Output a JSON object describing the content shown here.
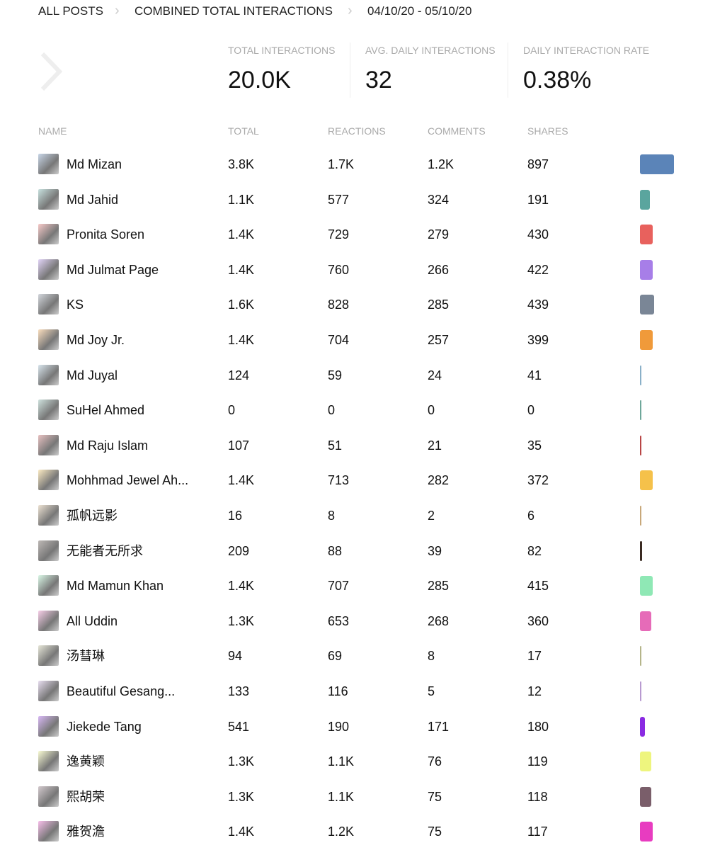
{
  "breadcrumb": [
    "ALL POSTS",
    "COMBINED TOTAL INTERACTIONS",
    "04/10/20 - 05/10/20"
  ],
  "stats": [
    {
      "label": "TOTAL INTERACTIONS",
      "value": "20.0K"
    },
    {
      "label": "AVG. DAILY INTERACTIONS",
      "value": "32"
    },
    {
      "label": "DAILY INTERACTION RATE",
      "value": "0.38%"
    }
  ],
  "table": {
    "columns": [
      "NAME",
      "TOTAL",
      "REACTIONS",
      "COMMENTS",
      "SHARES"
    ],
    "rows": [
      {
        "name": "Md Mizan",
        "total": "3.8K",
        "reactions": "1.7K",
        "comments": "1.2K",
        "shares": "897",
        "color": "#5b84b8"
      },
      {
        "name": "Md Jahid",
        "total": "1.1K",
        "reactions": "577",
        "comments": "324",
        "shares": "191",
        "color": "#5aa59e"
      },
      {
        "name": "Pronita Soren",
        "total": "1.4K",
        "reactions": "729",
        "comments": "279",
        "shares": "430",
        "color": "#e8615d"
      },
      {
        "name": "Md Julmat Page",
        "total": "1.4K",
        "reactions": "760",
        "comments": "266",
        "shares": "422",
        "color": "#a77ee8"
      },
      {
        "name": "KS",
        "total": "1.6K",
        "reactions": "828",
        "comments": "285",
        "shares": "439",
        "color": "#7a8696"
      },
      {
        "name": "Md Joy Jr.",
        "total": "1.4K",
        "reactions": "704",
        "comments": "257",
        "shares": "399",
        "color": "#f09a3a"
      },
      {
        "name": "Md Juyal",
        "total": "124",
        "reactions": "59",
        "comments": "24",
        "shares": "41",
        "color": "#8ab0c8"
      },
      {
        "name": "SuHel Ahmed",
        "total": "0",
        "reactions": "0",
        "comments": "0",
        "shares": "0",
        "color": "#6ea79a"
      },
      {
        "name": "Md Raju Islam",
        "total": "107",
        "reactions": "51",
        "comments": "21",
        "shares": "35",
        "color": "#b84545"
      },
      {
        "name": "Mohhmad Jewel Ah...",
        "total": "1.4K",
        "reactions": "713",
        "comments": "282",
        "shares": "372",
        "color": "#f5c14a"
      },
      {
        "name": "孤帆远影",
        "total": "16",
        "reactions": "8",
        "comments": "2",
        "shares": "6",
        "color": "#c8a87a"
      },
      {
        "name": "无能者无所求",
        "total": "209",
        "reactions": "88",
        "comments": "39",
        "shares": "82",
        "color": "#3a2a22"
      },
      {
        "name": "Md Mamun Khan",
        "total": "1.4K",
        "reactions": "707",
        "comments": "285",
        "shares": "415",
        "color": "#8fe8b5"
      },
      {
        "name": "All Uddin",
        "total": "1.3K",
        "reactions": "653",
        "comments": "268",
        "shares": "360",
        "color": "#e66bb8"
      },
      {
        "name": "汤彗琳",
        "total": "94",
        "reactions": "69",
        "comments": "8",
        "shares": "17",
        "color": "#b5b58a"
      },
      {
        "name": "Beautiful Gesang...",
        "total": "133",
        "reactions": "116",
        "comments": "5",
        "shares": "12",
        "color": "#b89ad0"
      },
      {
        "name": "Jiekede Tang",
        "total": "541",
        "reactions": "190",
        "comments": "171",
        "shares": "180",
        "color": "#8a2be2"
      },
      {
        "name": "逸黄颖",
        "total": "1.3K",
        "reactions": "1.1K",
        "comments": "76",
        "shares": "119",
        "color": "#eef57e"
      },
      {
        "name": "熙胡荣",
        "total": "1.3K",
        "reactions": "1.1K",
        "comments": "75",
        "shares": "118",
        "color": "#7a5e6a"
      },
      {
        "name": "雅贺澹",
        "total": "1.4K",
        "reactions": "1.2K",
        "comments": "75",
        "shares": "117",
        "color": "#e83cc0"
      }
    ]
  }
}
